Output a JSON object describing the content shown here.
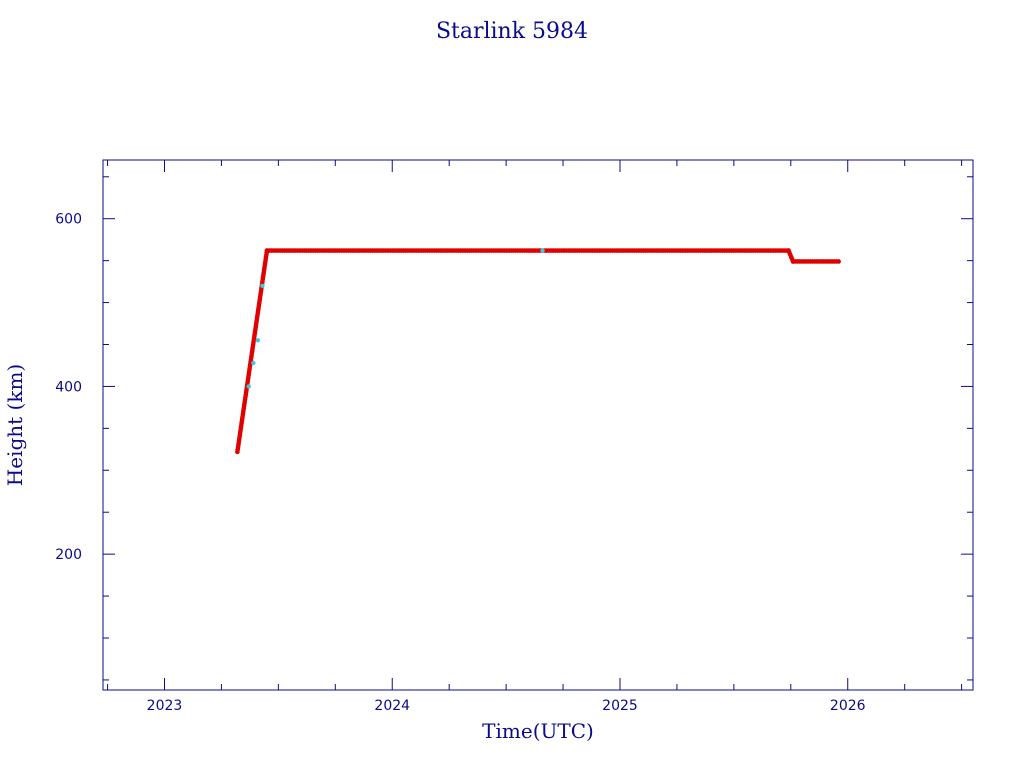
{
  "chart_data": {
    "type": "scatter",
    "title": "Starlink 5984",
    "xlabel": "Time(UTC)",
    "ylabel": "Height (km)",
    "xlim": [
      2022.73,
      2026.55
    ],
    "ylim": [
      38,
      670
    ],
    "x_ticks": [
      "2023",
      "2024",
      "2025",
      "2026"
    ],
    "y_ticks": [
      "200",
      "400",
      "600"
    ],
    "grid": false,
    "colors": {
      "axis": "#0b0b8a",
      "points": "#e00000",
      "highlight": "#40c8d8"
    },
    "series": [
      {
        "segments": [
          {
            "x_start": 2023.32,
            "x_end": 2023.45,
            "y_start": 322,
            "y_end": 562
          },
          {
            "x_start": 2023.45,
            "x_end": 2025.74,
            "y_start": 562,
            "y_end": 562
          },
          {
            "x_start": 2025.74,
            "x_end": 2025.76,
            "y_start": 562,
            "y_end": 549
          },
          {
            "x_start": 2025.76,
            "x_end": 2025.96,
            "y_start": 549,
            "y_end": 549
          }
        ]
      }
    ],
    "highlight_points": [
      {
        "x": 2023.37,
        "y": 400
      },
      {
        "x": 2023.39,
        "y": 428
      },
      {
        "x": 2023.41,
        "y": 455
      },
      {
        "x": 2023.43,
        "y": 520
      },
      {
        "x": 2024.66,
        "y": 562
      }
    ]
  }
}
